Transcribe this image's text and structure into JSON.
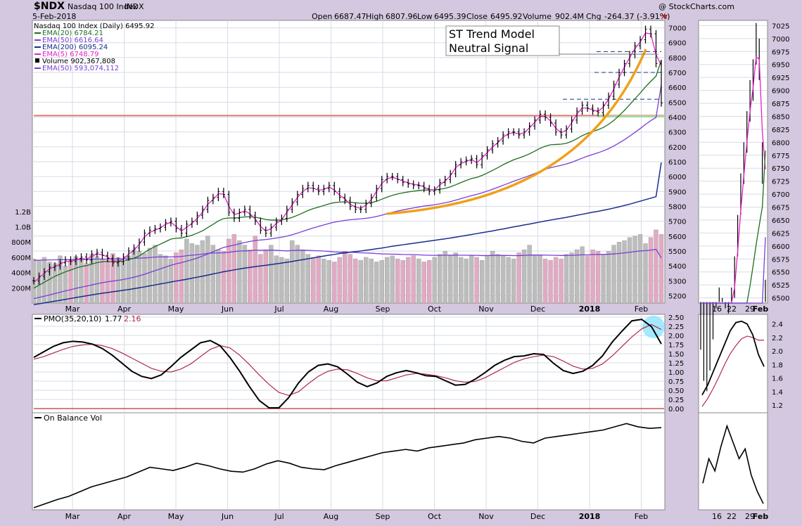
{
  "header": {
    "symbol": "$NDX",
    "name": "Nasdaq 100 Index",
    "exchange": "INDX",
    "date": "5-Feb-2018",
    "watermark": "@ StockCharts.com",
    "open_label": "Open",
    "open": "6687.47",
    "high_label": "High",
    "high": "6807.96",
    "low_label": "Low",
    "low": "6495.39",
    "close_label": "Close",
    "close": "6495.92",
    "volume_label": "Volume",
    "volume": "902.4M",
    "chg_label": "Chg",
    "chg": "-264.37 (-3.91%)"
  },
  "legend": [
    {
      "text": "Nasdaq 100 Index (Daily) 6495.92",
      "color": "#000000",
      "marker": "none"
    },
    {
      "text": "EMA(20) 6784.21",
      "color": "#1e6e1e",
      "marker": "line"
    },
    {
      "text": "EMA(50) 6616.64",
      "color": "#7a3dd6",
      "marker": "line"
    },
    {
      "text": "EMA(200) 6095.24",
      "color": "#1a2d8c",
      "marker": "line"
    },
    {
      "text": "EMA(5) 6748.79",
      "color": "#e620c8",
      "marker": "line"
    },
    {
      "text": "Volume 902,367,808",
      "color": "#000000",
      "marker": "box"
    },
    {
      "text": "EMA(50) 593,074,112",
      "color": "#7a3dd6",
      "marker": "line"
    }
  ],
  "annotation": {
    "line1": "ST Trend Model",
    "line2": "Neutral Signal"
  },
  "colors": {
    "ema5": "#e620c8",
    "ema20": "#1e6e1e",
    "ema50": "#7a3dd6",
    "ema200": "#1a2d8c",
    "trend_curve": "#f0a018",
    "resistance": "#e07a6a",
    "support": "#a8d8a0",
    "vol_up": "#bdbdbd",
    "vol_down": "#e2aac4",
    "pmo": "#000000",
    "pmo_signal": "#b02a4a",
    "panel_bg": "#ffffff",
    "grid": "#d6dbe6"
  },
  "main_panel": {
    "y_ticks": [
      "7000",
      "6900",
      "6800",
      "6700",
      "6600",
      "6500",
      "6400",
      "6300",
      "6200",
      "6100",
      "6000",
      "5900",
      "5800",
      "5700",
      "5600",
      "5500",
      "5400",
      "5300",
      "5200"
    ],
    "volume_ticks": [
      "1.2B",
      "1.0B",
      "800M",
      "600M",
      "400M",
      "200M"
    ],
    "x_labels": [
      "Mar",
      "Apr",
      "May",
      "Jun",
      "Jul",
      "Aug",
      "Sep",
      "Oct",
      "Nov",
      "Dec",
      "2018",
      "Feb"
    ]
  },
  "zoom_panel": {
    "y_ticks": [
      "7025",
      "7000",
      "6975",
      "6950",
      "6925",
      "6900",
      "6875",
      "6850",
      "6825",
      "6800",
      "6775",
      "6750",
      "6725",
      "6700",
      "6675",
      "6650",
      "6625",
      "6600",
      "6575",
      "6550",
      "6525",
      "6500"
    ],
    "x_labels": [
      "16",
      "22",
      "29",
      "Feb"
    ]
  },
  "pmo_panel": {
    "label": "PMO(35,20,10)",
    "value1": "1.77",
    "value2": "2.16",
    "y_ticks": [
      "2.50",
      "2.25",
      "2.00",
      "1.75",
      "1.50",
      "1.25",
      "1.00",
      "0.75",
      "0.50",
      "0.25",
      "0.00"
    ],
    "zoom_y_ticks": [
      "2.4",
      "2.2",
      "2.0",
      "1.8",
      "1.6",
      "1.4",
      "1.2"
    ]
  },
  "obv_panel": {
    "label": "On Balance Vol",
    "x_labels": [
      "Mar",
      "Apr",
      "May",
      "Jun",
      "Jul",
      "Aug",
      "Sep",
      "Oct",
      "Nov",
      "Dec",
      "2018",
      "Feb"
    ],
    "zoom_x_labels": [
      "16",
      "22",
      "29",
      "Feb"
    ]
  },
  "chart_data": {
    "type": "line",
    "title": "Nasdaq 100 Index (Daily)",
    "ylim": [
      5150,
      7050
    ],
    "price_close": [
      5300,
      5330,
      5360,
      5390,
      5400,
      5420,
      5440,
      5430,
      5450,
      5460,
      5440,
      5480,
      5490,
      5470,
      5450,
      5420,
      5430,
      5460,
      5500,
      5520,
      5560,
      5620,
      5640,
      5650,
      5660,
      5690,
      5700,
      5650,
      5620,
      5680,
      5700,
      5740,
      5780,
      5840,
      5860,
      5900,
      5880,
      5760,
      5720,
      5760,
      5780,
      5740,
      5700,
      5640,
      5620,
      5660,
      5700,
      5720,
      5780,
      5830,
      5880,
      5920,
      5940,
      5920,
      5900,
      5920,
      5940,
      5900,
      5860,
      5840,
      5800,
      5780,
      5780,
      5820,
      5860,
      5920,
      5980,
      6000,
      6000,
      5980,
      5960,
      5950,
      5940,
      5940,
      5920,
      5900,
      5910,
      5960,
      5980,
      6020,
      6080,
      6100,
      6110,
      6120,
      6080,
      6140,
      6180,
      6220,
      6240,
      6280,
      6300,
      6300,
      6280,
      6300,
      6340,
      6380,
      6420,
      6400,
      6360,
      6300,
      6280,
      6320,
      6380,
      6440,
      6480,
      6460,
      6440,
      6430,
      6480,
      6540,
      6620,
      6700,
      6760,
      6820,
      6880,
      6920,
      6990,
      6960,
      6760,
      6495
    ],
    "ema5": [
      5290,
      5320,
      5350,
      5380,
      5395,
      5412,
      5430,
      5430,
      5440,
      5450,
      5445,
      5465,
      5480,
      5475,
      5460,
      5435,
      5430,
      5445,
      5480,
      5505,
      5545,
      5595,
      5625,
      5640,
      5655,
      5680,
      5693,
      5665,
      5635,
      5660,
      5685,
      5720,
      5760,
      5815,
      5845,
      5885,
      5882,
      5800,
      5745,
      5755,
      5770,
      5750,
      5715,
      5665,
      5635,
      5650,
      5685,
      5710,
      5760,
      5810,
      5860,
      5900,
      5925,
      5922,
      5908,
      5914,
      5930,
      5910,
      5875,
      5850,
      5815,
      5795,
      5788,
      5808,
      5845,
      5900,
      5955,
      5985,
      5995,
      5985,
      5970,
      5958,
      5948,
      5944,
      5930,
      5912,
      5910,
      5945,
      5970,
      6005,
      6060,
      6088,
      6102,
      6115,
      6093,
      6125,
      6162,
      6200,
      6228,
      6265,
      6288,
      6296,
      6286,
      6294,
      6328,
      6365,
      6405,
      6403,
      6375,
      6325,
      6295,
      6312,
      6362,
      6420,
      6462,
      6460,
      6448,
      6438,
      6468,
      6520,
      6590,
      6668,
      6735,
      6800,
      6860,
      6905,
      6965,
      6960,
      6820,
      6748
    ],
    "ema20": [
      5250,
      5270,
      5290,
      5310,
      5330,
      5345,
      5360,
      5372,
      5385,
      5395,
      5402,
      5412,
      5422,
      5428,
      5430,
      5428,
      5428,
      5432,
      5442,
      5452,
      5467,
      5490,
      5512,
      5530,
      5546,
      5563,
      5580,
      5586,
      5588,
      5596,
      5606,
      5620,
      5636,
      5658,
      5679,
      5702,
      5718,
      5722,
      5722,
      5725,
      5729,
      5730,
      5727,
      5720,
      5712,
      5708,
      5708,
      5709,
      5716,
      5726,
      5740,
      5756,
      5772,
      5785,
      5795,
      5806,
      5817,
      5825,
      5829,
      5830,
      5828,
      5824,
      5821,
      5821,
      5825,
      5834,
      5848,
      5862,
      5874,
      5884,
      5891,
      5897,
      5902,
      5907,
      5909,
      5910,
      5910,
      5915,
      5921,
      5931,
      5945,
      5960,
      5974,
      5987,
      5995,
      6008,
      6024,
      6042,
      6060,
      6080,
      6097,
      6113,
      6125,
      6138,
      6153,
      6171,
      6190,
      6204,
      6214,
      6216,
      6218,
      6224,
      6237,
      6255,
      6275,
      6291,
      6304,
      6315,
      6330,
      6351,
      6378,
      6410,
      6445,
      6483,
      6523,
      6562,
      6603,
      6640,
      6675,
      6784
    ],
    "ema50": [
      5180,
      5188,
      5196,
      5205,
      5214,
      5223,
      5232,
      5240,
      5249,
      5257,
      5264,
      5272,
      5280,
      5287,
      5293,
      5298,
      5303,
      5309,
      5316,
      5324,
      5333,
      5344,
      5356,
      5368,
      5380,
      5392,
      5404,
      5414,
      5422,
      5432,
      5442,
      5453,
      5466,
      5480,
      5495,
      5510,
      5524,
      5532,
      5540,
      5549,
      5557,
      5564,
      5570,
      5574,
      5577,
      5582,
      5587,
      5593,
      5600,
      5609,
      5620,
      5632,
      5644,
      5655,
      5665,
      5675,
      5685,
      5694,
      5700,
      5706,
      5710,
      5713,
      5716,
      5720,
      5725,
      5732,
      5741,
      5751,
      5760,
      5769,
      5776,
      5783,
      5790,
      5796,
      5802,
      5806,
      5811,
      5817,
      5824,
      5832,
      5842,
      5852,
      5862,
      5872,
      5881,
      5891,
      5903,
      5915,
      5928,
      5942,
      5955,
      5969,
      5981,
      5994,
      6007,
      6021,
      6036,
      6049,
      6060,
      6068,
      6076,
      6085,
      6096,
      6110,
      6124,
      6137,
      6149,
      6160,
      6173,
      6188,
      6206,
      6226,
      6248,
      6272,
      6297,
      6323,
      6351,
      6376,
      6398,
      6617
    ],
    "ema200": [
      5140,
      5145,
      5151,
      5157,
      5163,
      5169,
      5175,
      5181,
      5187,
      5193,
      5199,
      5205,
      5211,
      5216,
      5221,
      5226,
      5231,
      5236,
      5241,
      5247,
      5253,
      5259,
      5266,
      5272,
      5279,
      5285,
      5292,
      5298,
      5304,
      5310,
      5317,
      5324,
      5331,
      5338,
      5346,
      5353,
      5361,
      5367,
      5373,
      5379,
      5385,
      5390,
      5395,
      5400,
      5404,
      5409,
      5414,
      5419,
      5424,
      5430,
      5436,
      5442,
      5448,
      5454,
      5460,
      5466,
      5472,
      5477,
      5483,
      5487,
      5492,
      5496,
      5500,
      5505,
      5510,
      5515,
      5520,
      5526,
      5532,
      5537,
      5542,
      5547,
      5552,
      5557,
      5562,
      5567,
      5572,
      5577,
      5582,
      5587,
      5593,
      5599,
      5605,
      5611,
      5617,
      5623,
      5629,
      5635,
      5642,
      5648,
      5655,
      5662,
      5668,
      5675,
      5681,
      5688,
      5695,
      5702,
      5708,
      5714,
      5720,
      5726,
      5733,
      5740,
      5747,
      5754,
      5761,
      5767,
      5774,
      5781,
      5789,
      5797,
      5806,
      5815,
      5825,
      5835,
      5845,
      5855,
      5865,
      6095
    ],
    "volume_millions": [
      580,
      560,
      600,
      540,
      520,
      620,
      480,
      560,
      610,
      590,
      520,
      640,
      610,
      580,
      560,
      650,
      600,
      540,
      620,
      700,
      680,
      650,
      720,
      760,
      640,
      620,
      580,
      660,
      700,
      840,
      780,
      760,
      820,
      880,
      760,
      700,
      680,
      840,
      900,
      820,
      760,
      700,
      880,
      640,
      700,
      760,
      620,
      600,
      580,
      820,
      760,
      700,
      640,
      600,
      620,
      580,
      560,
      540,
      600,
      680,
      640,
      580,
      560,
      600,
      580,
      540,
      560,
      600,
      620,
      580,
      560,
      600,
      620,
      580,
      540,
      560,
      600,
      640,
      680,
      620,
      660,
      600,
      580,
      620,
      600,
      560,
      620,
      680,
      640,
      620,
      600,
      580,
      660,
      700,
      760,
      620,
      620,
      580,
      560,
      600,
      580,
      640,
      660,
      700,
      740,
      620,
      700,
      680,
      640,
      680,
      760,
      800,
      820,
      860,
      880,
      900,
      780,
      860,
      960,
      902
    ],
    "volume_ema50": [
      560,
      562,
      565,
      566,
      567,
      570,
      569,
      569,
      571,
      573,
      572,
      575,
      577,
      577,
      577,
      580,
      580,
      579,
      581,
      586,
      590,
      592,
      597,
      604,
      605,
      606,
      605,
      607,
      611,
      621,
      628,
      634,
      642,
      652,
      656,
      658,
      659,
      666,
      676,
      682,
      685,
      686,
      694,
      692,
      692,
      695,
      692,
      688,
      684,
      689,
      692,
      693,
      691,
      688,
      686,
      682,
      677,
      671,
      668,
      668,
      667,
      664,
      659,
      657,
      654,
      649,
      645,
      643,
      642,
      640,
      637,
      636,
      635,
      633,
      629,
      627,
      626,
      626,
      628,
      628,
      629,
      628,
      627,
      627,
      626,
      623,
      623,
      625,
      625,
      625,
      624,
      622,
      623,
      625,
      630,
      630,
      630,
      629,
      627,
      626,
      624,
      625,
      626,
      629,
      633,
      633,
      636,
      638,
      638,
      640,
      645,
      651,
      658,
      666,
      675,
      684,
      688,
      695,
      706,
      593
    ],
    "pmo": [
      1.4,
      1.55,
      1.7,
      1.8,
      1.84,
      1.82,
      1.76,
      1.64,
      1.46,
      1.24,
      1.02,
      0.88,
      0.82,
      0.92,
      1.15,
      1.4,
      1.6,
      1.8,
      1.86,
      1.72,
      1.4,
      1.02,
      0.6,
      0.22,
      0.02,
      0.02,
      0.3,
      0.7,
      1.0,
      1.18,
      1.22,
      1.14,
      0.94,
      0.72,
      0.6,
      0.7,
      0.88,
      0.98,
      1.04,
      0.98,
      0.9,
      0.88,
      0.76,
      0.64,
      0.66,
      0.8,
      0.98,
      1.18,
      1.32,
      1.42,
      1.44,
      1.5,
      1.48,
      1.24,
      1.04,
      0.96,
      1.02,
      1.18,
      1.44,
      1.82,
      2.12,
      2.4,
      2.44,
      2.24,
      1.77
    ],
    "pmo_signal": [
      1.35,
      1.42,
      1.52,
      1.62,
      1.7,
      1.74,
      1.76,
      1.72,
      1.64,
      1.52,
      1.38,
      1.24,
      1.1,
      1.02,
      1.0,
      1.08,
      1.22,
      1.42,
      1.62,
      1.72,
      1.66,
      1.46,
      1.2,
      0.92,
      0.66,
      0.44,
      0.36,
      0.46,
      0.68,
      0.88,
      1.02,
      1.08,
      1.06,
      0.96,
      0.84,
      0.76,
      0.76,
      0.84,
      0.92,
      0.96,
      0.94,
      0.9,
      0.84,
      0.76,
      0.72,
      0.74,
      0.84,
      0.98,
      1.12,
      1.26,
      1.36,
      1.42,
      1.46,
      1.42,
      1.3,
      1.16,
      1.08,
      1.1,
      1.22,
      1.44,
      1.7,
      1.96,
      2.18,
      2.3,
      2.16
    ],
    "obv_index": [
      0,
      5,
      10,
      14,
      20,
      26,
      30,
      34,
      38,
      44,
      50,
      48,
      46,
      50,
      55,
      52,
      48,
      45,
      44,
      48,
      54,
      58,
      55,
      50,
      48,
      47,
      52,
      56,
      60,
      64,
      68,
      70,
      72,
      70,
      74,
      76,
      78,
      80,
      84,
      86,
      88,
      86,
      82,
      80,
      86,
      88,
      90,
      92,
      94,
      96,
      100,
      104,
      100,
      98,
      99
    ]
  }
}
